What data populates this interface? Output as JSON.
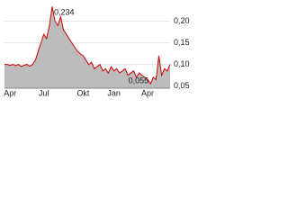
{
  "chart_data": {
    "type": "line",
    "categories": [
      null,
      null,
      "Apr",
      null,
      null,
      null,
      null,
      null,
      null,
      null,
      null,
      null,
      null,
      null,
      "Jul",
      null,
      null,
      null,
      null,
      null,
      null,
      null,
      null,
      null,
      null,
      null,
      null,
      null,
      "Okt",
      null,
      null,
      null,
      null,
      null,
      null,
      null,
      null,
      null,
      null,
      "Jan",
      null,
      null,
      null,
      null,
      null,
      null,
      null,
      null,
      null,
      null,
      null,
      "Apr",
      null,
      null,
      null,
      null,
      null,
      null,
      null,
      null
    ],
    "series": [
      {
        "color": "#cc0000",
        "fill": "#bcbcbc",
        "values": [
          0.1,
          0.1,
          0.098,
          0.1,
          0.097,
          0.1,
          0.095,
          0.098,
          0.1,
          0.096,
          0.1,
          0.11,
          0.13,
          0.15,
          0.17,
          0.16,
          0.19,
          0.234,
          0.2,
          0.19,
          0.21,
          0.18,
          0.17,
          0.16,
          0.15,
          0.14,
          0.13,
          0.125,
          0.12,
          0.11,
          0.1,
          0.105,
          0.09,
          0.095,
          0.1,
          0.085,
          0.09,
          0.08,
          0.095,
          0.085,
          0.09,
          0.08,
          0.085,
          0.09,
          0.075,
          0.08,
          0.085,
          0.07,
          0.08,
          0.075,
          0.07,
          0.065,
          0.055,
          0.07,
          0.065,
          0.12,
          0.075,
          0.09,
          0.085,
          0.1
        ]
      }
    ],
    "ylim": [
      0.045,
      0.245
    ],
    "yticks": [
      {
        "value": 0.05,
        "label": "0,05"
      },
      {
        "value": 0.1,
        "label": "0,10"
      },
      {
        "value": 0.15,
        "label": "0,15"
      },
      {
        "value": 0.2,
        "label": "0,20"
      }
    ],
    "grid": true,
    "annotations": [
      {
        "value": 0.234,
        "label": "0,234"
      },
      {
        "value": 0.055,
        "label": "0,055"
      }
    ]
  }
}
